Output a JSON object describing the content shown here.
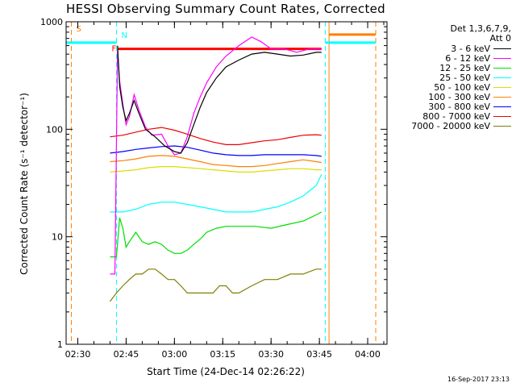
{
  "chart_data": {
    "type": "line",
    "title": "HESSI Observing Summary Count Rates, Corrected",
    "ylabel": "Corrected Count Rate (s⁻¹ detector⁻¹)",
    "xlabel": "Start Time (24-Dec-14 02:26:22)",
    "yscale": "log",
    "ylim": [
      1,
      1000
    ],
    "xlim": [
      "02:26:22",
      "04:06:00"
    ],
    "x_ticks": [
      "02:30",
      "02:45",
      "03:00",
      "03:15",
      "03:30",
      "03:45",
      "04:00"
    ],
    "y_ticks": [
      "1",
      "10",
      "100",
      "1000"
    ],
    "legend_header": [
      "Det 1,3,6,7,9,",
      "Att 0"
    ],
    "legend_placement": "right",
    "flags": [
      {
        "label": "S",
        "color": "#ff7f00"
      },
      {
        "label": "N",
        "color": "#00ffff"
      },
      {
        "label": "F",
        "color": "#ff0000"
      }
    ],
    "series": [
      {
        "name": "3 - 6 keV",
        "color": "#000000",
        "points": [
          [
            "02:42:20",
            600
          ],
          [
            "02:43:00",
            250
          ],
          [
            "02:44:00",
            160
          ],
          [
            "02:45:00",
            120
          ],
          [
            "02:46:00",
            140
          ],
          [
            "02:47:30",
            185
          ],
          [
            "02:49:00",
            140
          ],
          [
            "02:51:00",
            100
          ],
          [
            "02:54:00",
            85
          ],
          [
            "02:57:00",
            70
          ],
          [
            "03:00:00",
            62
          ],
          [
            "03:02:00",
            60
          ],
          [
            "03:04:00",
            75
          ],
          [
            "03:06:00",
            110
          ],
          [
            "03:08:00",
            160
          ],
          [
            "03:10:00",
            220
          ],
          [
            "03:13:00",
            300
          ],
          [
            "03:16:00",
            380
          ],
          [
            "03:20:00",
            440
          ],
          [
            "03:24:00",
            500
          ],
          [
            "03:28:00",
            520
          ],
          [
            "03:32:00",
            500
          ],
          [
            "03:36:00",
            480
          ],
          [
            "03:40:00",
            490
          ],
          [
            "03:44:00",
            520
          ],
          [
            "03:45:40",
            520
          ]
        ]
      },
      {
        "name": "6 - 12 keV",
        "color": "#ff00ff",
        "points": [
          [
            "02:40:00",
            4.5
          ],
          [
            "02:41:30",
            4.5
          ],
          [
            "02:42:20",
            550
          ],
          [
            "02:43:00",
            280
          ],
          [
            "02:44:00",
            170
          ],
          [
            "02:45:00",
            110
          ],
          [
            "02:46:00",
            130
          ],
          [
            "02:47:30",
            210
          ],
          [
            "02:49:00",
            150
          ],
          [
            "02:51:00",
            105
          ],
          [
            "02:53:00",
            88
          ],
          [
            "02:56:00",
            90
          ],
          [
            "02:58:00",
            70
          ],
          [
            "03:00:00",
            58
          ],
          [
            "03:02:00",
            60
          ],
          [
            "03:04:00",
            85
          ],
          [
            "03:06:00",
            140
          ],
          [
            "03:08:00",
            200
          ],
          [
            "03:10:00",
            270
          ],
          [
            "03:13:00",
            380
          ],
          [
            "03:16:00",
            480
          ],
          [
            "03:20:00",
            600
          ],
          [
            "03:24:00",
            720
          ],
          [
            "03:27:00",
            650
          ],
          [
            "03:30:00",
            560
          ],
          [
            "03:34:00",
            560
          ],
          [
            "03:38:00",
            520
          ],
          [
            "03:42:00",
            560
          ],
          [
            "03:45:40",
            560
          ]
        ]
      },
      {
        "name": "12 - 25 keV",
        "color": "#00dd00",
        "points": [
          [
            "02:40:00",
            6.5
          ],
          [
            "02:42:00",
            6.5
          ],
          [
            "02:43:00",
            15
          ],
          [
            "02:44:00",
            12
          ],
          [
            "02:45:00",
            8
          ],
          [
            "02:46:00",
            9
          ],
          [
            "02:48:00",
            11
          ],
          [
            "02:50:00",
            9
          ],
          [
            "02:52:00",
            8.5
          ],
          [
            "02:54:00",
            9
          ],
          [
            "02:56:00",
            8.5
          ],
          [
            "02:58:00",
            7.5
          ],
          [
            "03:00:00",
            7
          ],
          [
            "03:02:00",
            7
          ],
          [
            "03:04:00",
            7.5
          ],
          [
            "03:06:00",
            8.5
          ],
          [
            "03:08:00",
            9.5
          ],
          [
            "03:10:00",
            11
          ],
          [
            "03:13:00",
            12
          ],
          [
            "03:16:00",
            12.5
          ],
          [
            "03:20:00",
            12.5
          ],
          [
            "03:25:00",
            12.5
          ],
          [
            "03:30:00",
            12
          ],
          [
            "03:35:00",
            13
          ],
          [
            "03:40:00",
            14
          ],
          [
            "03:44:00",
            16
          ],
          [
            "03:45:40",
            17
          ]
        ]
      },
      {
        "name": "25 - 50 keV",
        "color": "#00ffff",
        "points": [
          [
            "02:40:00",
            17
          ],
          [
            "02:44:00",
            17
          ],
          [
            "02:48:00",
            18
          ],
          [
            "02:52:00",
            20
          ],
          [
            "02:56:00",
            21
          ],
          [
            "03:00:00",
            21
          ],
          [
            "03:04:00",
            20
          ],
          [
            "03:08:00",
            19
          ],
          [
            "03:12:00",
            18
          ],
          [
            "03:16:00",
            17
          ],
          [
            "03:20:00",
            17
          ],
          [
            "03:24:00",
            17
          ],
          [
            "03:28:00",
            18
          ],
          [
            "03:32:00",
            19
          ],
          [
            "03:36:00",
            21
          ],
          [
            "03:40:00",
            24
          ],
          [
            "03:44:00",
            30
          ],
          [
            "03:45:40",
            38
          ]
        ]
      },
      {
        "name": "50 - 100 keV",
        "color": "#dddd00",
        "points": [
          [
            "02:40:00",
            40
          ],
          [
            "02:44:00",
            41
          ],
          [
            "02:48:00",
            42
          ],
          [
            "02:52:00",
            44
          ],
          [
            "02:56:00",
            45
          ],
          [
            "03:00:00",
            45
          ],
          [
            "03:04:00",
            44
          ],
          [
            "03:08:00",
            43
          ],
          [
            "03:12:00",
            42
          ],
          [
            "03:16:00",
            41
          ],
          [
            "03:20:00",
            40
          ],
          [
            "03:24:00",
            40
          ],
          [
            "03:28:00",
            41
          ],
          [
            "03:32:00",
            42
          ],
          [
            "03:36:00",
            43
          ],
          [
            "03:40:00",
            43
          ],
          [
            "03:44:00",
            42
          ],
          [
            "03:45:40",
            42
          ]
        ]
      },
      {
        "name": "100 - 300 keV",
        "color": "#ff7f00",
        "points": [
          [
            "02:40:00",
            50
          ],
          [
            "02:44:00",
            51
          ],
          [
            "02:48:00",
            53
          ],
          [
            "02:52:00",
            56
          ],
          [
            "02:56:00",
            57
          ],
          [
            "03:00:00",
            56
          ],
          [
            "03:04:00",
            53
          ],
          [
            "03:08:00",
            50
          ],
          [
            "03:12:00",
            47
          ],
          [
            "03:16:00",
            46
          ],
          [
            "03:20:00",
            45
          ],
          [
            "03:24:00",
            45
          ],
          [
            "03:28:00",
            46
          ],
          [
            "03:32:00",
            48
          ],
          [
            "03:36:00",
            50
          ],
          [
            "03:40:00",
            52
          ],
          [
            "03:44:00",
            50
          ],
          [
            "03:45:40",
            49
          ]
        ]
      },
      {
        "name": "300 - 800 keV",
        "color": "#0000ff",
        "points": [
          [
            "02:40:00",
            60
          ],
          [
            "02:44:00",
            62
          ],
          [
            "02:48:00",
            65
          ],
          [
            "02:52:00",
            67
          ],
          [
            "02:56:00",
            69
          ],
          [
            "03:00:00",
            70
          ],
          [
            "03:04:00",
            68
          ],
          [
            "03:08:00",
            64
          ],
          [
            "03:12:00",
            60
          ],
          [
            "03:16:00",
            58
          ],
          [
            "03:20:00",
            57
          ],
          [
            "03:24:00",
            57
          ],
          [
            "03:28:00",
            58
          ],
          [
            "03:32:00",
            58
          ],
          [
            "03:36:00",
            58
          ],
          [
            "03:40:00",
            58
          ],
          [
            "03:44:00",
            57
          ],
          [
            "03:45:40",
            56
          ]
        ]
      },
      {
        "name": "800 - 7000 keV",
        "color": "#ee0000",
        "points": [
          [
            "02:40:00",
            85
          ],
          [
            "02:44:00",
            88
          ],
          [
            "02:48:00",
            94
          ],
          [
            "02:52:00",
            100
          ],
          [
            "02:56:00",
            104
          ],
          [
            "03:00:00",
            98
          ],
          [
            "03:04:00",
            90
          ],
          [
            "03:08:00",
            82
          ],
          [
            "03:12:00",
            76
          ],
          [
            "03:16:00",
            72
          ],
          [
            "03:20:00",
            72
          ],
          [
            "03:24:00",
            75
          ],
          [
            "03:28:00",
            78
          ],
          [
            "03:32:00",
            80
          ],
          [
            "03:36:00",
            84
          ],
          [
            "03:40:00",
            88
          ],
          [
            "03:44:00",
            89
          ],
          [
            "03:45:40",
            88
          ]
        ]
      },
      {
        "name": "7000 - 20000 keV",
        "color": "#808000",
        "points": [
          [
            "02:40:00",
            2.5
          ],
          [
            "02:42:00",
            3
          ],
          [
            "02:44:00",
            3.5
          ],
          [
            "02:46:00",
            4
          ],
          [
            "02:48:00",
            4.5
          ],
          [
            "02:50:00",
            4.5
          ],
          [
            "02:52:00",
            5
          ],
          [
            "02:54:00",
            5
          ],
          [
            "02:56:00",
            4.5
          ],
          [
            "02:58:00",
            4
          ],
          [
            "03:00:00",
            4
          ],
          [
            "03:02:00",
            3.5
          ],
          [
            "03:04:00",
            3
          ],
          [
            "03:06:00",
            3
          ],
          [
            "03:08:00",
            3
          ],
          [
            "03:10:00",
            3
          ],
          [
            "03:12:00",
            3
          ],
          [
            "03:14:00",
            3.5
          ],
          [
            "03:16:00",
            3.5
          ],
          [
            "03:18:00",
            3
          ],
          [
            "03:20:00",
            3
          ],
          [
            "03:24:00",
            3.5
          ],
          [
            "03:28:00",
            4
          ],
          [
            "03:32:00",
            4
          ],
          [
            "03:36:00",
            4.5
          ],
          [
            "03:40:00",
            4.5
          ],
          [
            "03:44:00",
            5
          ],
          [
            "03:45:40",
            5
          ]
        ]
      }
    ]
  },
  "footer": {
    "timestamp": "16-Sep-2017 23:13"
  }
}
